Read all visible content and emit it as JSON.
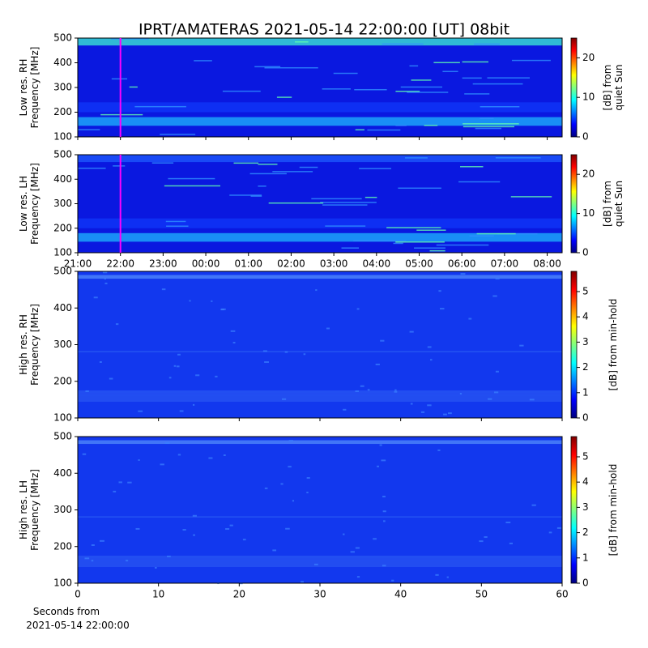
{
  "title": "IPRT/AMATERAS 2021-05-14 22:00:00 [UT]   08bit",
  "xlabel": [
    "Seconds from",
    "2021-05-14 22:00:00"
  ],
  "chart_data": [
    {
      "type": "heatmap",
      "ylabel": [
        "Low res. RH",
        "Frequency [MHz]"
      ],
      "xlim": [
        21,
        32.35
      ],
      "ylim": [
        100,
        500
      ],
      "yticks": [
        100,
        200,
        300,
        400,
        500
      ],
      "vline": {
        "value": 22,
        "color": "#ff00ff"
      },
      "colorbar": {
        "label": [
          "[dB] from",
          "quiet Sun"
        ],
        "lim": [
          0,
          25
        ],
        "ticks": [
          0,
          10,
          20
        ]
      }
    },
    {
      "type": "heatmap",
      "ylabel": [
        "Low res. LH",
        "Frequency [MHz]"
      ],
      "xlim": [
        21,
        32.35
      ],
      "ylim": [
        100,
        500
      ],
      "yticks": [
        100,
        200,
        300,
        400,
        500
      ],
      "xticks": [
        {
          "value": 21,
          "label": "21:00"
        },
        {
          "value": 22,
          "label": "22:00"
        },
        {
          "value": 23,
          "label": "23:00"
        },
        {
          "value": 24,
          "label": "00:00"
        },
        {
          "value": 25,
          "label": "01:00"
        },
        {
          "value": 26,
          "label": "02:00"
        },
        {
          "value": 27,
          "label": "03:00"
        },
        {
          "value": 28,
          "label": "04:00"
        },
        {
          "value": 29,
          "label": "05:00"
        },
        {
          "value": 30,
          "label": "06:00"
        },
        {
          "value": 31,
          "label": "07:00"
        },
        {
          "value": 32,
          "label": "08:00"
        }
      ],
      "vline": {
        "value": 22,
        "color": "#ff00ff"
      },
      "colorbar": {
        "label": [
          "[dB] from",
          "quiet Sun"
        ],
        "lim": [
          0,
          25
        ],
        "ticks": [
          0,
          10,
          20
        ]
      }
    },
    {
      "type": "heatmap",
      "ylabel": [
        "High res. RH",
        "Frequency [MHz]"
      ],
      "xlim": [
        0,
        60
      ],
      "ylim": [
        100,
        500
      ],
      "yticks": [
        100,
        200,
        300,
        400,
        500
      ],
      "colorbar": {
        "label": [
          "[dB] from min-hold"
        ],
        "lim": [
          0,
          5.8
        ],
        "ticks": [
          0,
          1,
          2,
          3,
          4,
          5
        ]
      }
    },
    {
      "type": "heatmap",
      "ylabel": [
        "High res. LH",
        "Frequency [MHz]"
      ],
      "xlim": [
        0,
        60
      ],
      "ylim": [
        100,
        500
      ],
      "yticks": [
        100,
        200,
        300,
        400,
        500
      ],
      "xticks": [
        0,
        10,
        20,
        30,
        40,
        50,
        60
      ],
      "colorbar": {
        "label": [
          "[dB] from min-hold"
        ],
        "lim": [
          0,
          5.8
        ],
        "ticks": [
          0,
          1,
          2,
          3,
          4,
          5
        ]
      }
    }
  ]
}
